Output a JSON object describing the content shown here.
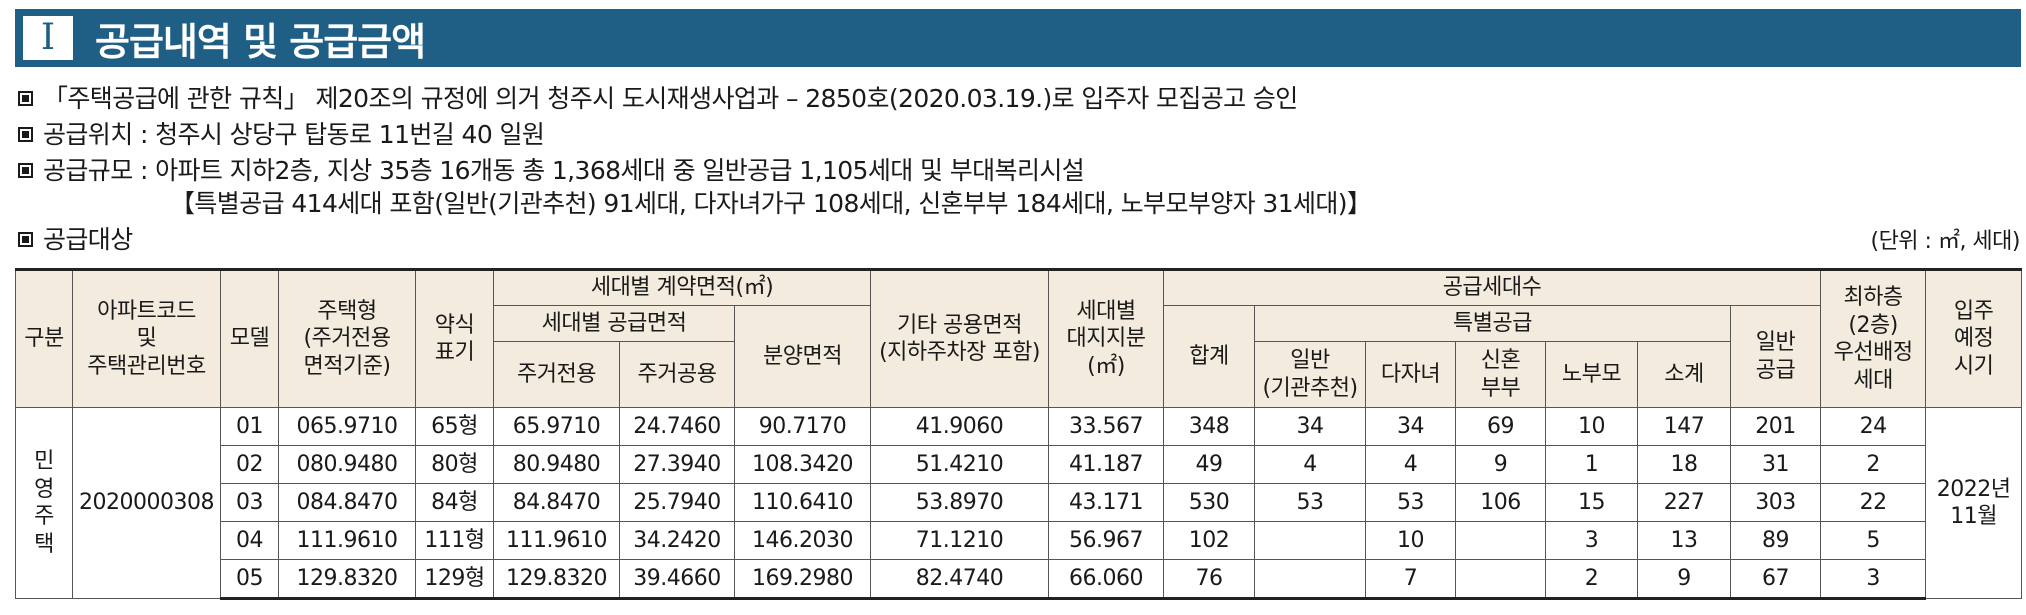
{
  "header": {
    "number": "I",
    "title": "공급내역 및 공급금액"
  },
  "info": {
    "line1": "「주택공급에 관한 규칙」 제20조의 규정에 의거 청주시 도시재생사업과 – 2850호(2020.03.19.)로 입주자 모집공고 승인",
    "line2": "공급위치 : 청주시 상당구 탑동로 11번길 40 일원",
    "line3": "공급규모 : 아파트 지하2층, 지상 35층 16개동 총 1,368세대 중 일반공급 1,105세대 및 부대복리시설",
    "line4": "【특별공급 414세대 포함(일반(기관추천) 91세대, 다자녀가구 108세대, 신혼부부 184세대, 노부모부양자 31세대)】",
    "line5": "공급대상",
    "unit": "(단위 : ㎡, 세대)"
  },
  "table": {
    "headers": {
      "category": "구분",
      "code": "아파트코드\n및\n주택관리번호",
      "model": "모델",
      "type": "주택형\n(주거전용\n면적기준)",
      "abbrev": "약식\n표기",
      "contract_area": "세대별 계약면적(㎡)",
      "supply_area": "세대별 공급면적",
      "exclusive": "주거전용",
      "common": "주거공용",
      "sale_area": "분양면적",
      "other_common": "기타 공용면적\n(지하주차장 포함)",
      "land_share": "세대별\n대지지분\n(㎡)",
      "supply_units": "공급세대수",
      "total": "합계",
      "special": "특별공급",
      "institution": "일반\n(기관추천)",
      "multi_child": "다자녀",
      "newlywed": "신혼\n부부",
      "elderly": "노부모",
      "subtotal": "소계",
      "general": "일반\n공급",
      "lowest_floor": "최하층\n(2층)\n우선배정\n세대",
      "move_in": "입주\n예정\n시기"
    },
    "category_value": "민영주택",
    "code_value": "2020000308",
    "move_in_value": "2022년\n11월",
    "rows": [
      {
        "model": "01",
        "type": "065.9710",
        "abbrev": "65형",
        "exclusive": "65.9710",
        "common": "24.7460",
        "sale": "90.7170",
        "other": "41.9060",
        "land": "33.567",
        "total": "348",
        "institution": "34",
        "multi": "34",
        "newlywed": "69",
        "elderly": "10",
        "subtotal": "147",
        "general": "201",
        "lowest": "24"
      },
      {
        "model": "02",
        "type": "080.9480",
        "abbrev": "80형",
        "exclusive": "80.9480",
        "common": "27.3940",
        "sale": "108.3420",
        "other": "51.4210",
        "land": "41.187",
        "total": "49",
        "institution": "4",
        "multi": "4",
        "newlywed": "9",
        "elderly": "1",
        "subtotal": "18",
        "general": "31",
        "lowest": "2"
      },
      {
        "model": "03",
        "type": "084.8470",
        "abbrev": "84형",
        "exclusive": "84.8470",
        "common": "25.7940",
        "sale": "110.6410",
        "other": "53.8970",
        "land": "43.171",
        "total": "530",
        "institution": "53",
        "multi": "53",
        "newlywed": "106",
        "elderly": "15",
        "subtotal": "227",
        "general": "303",
        "lowest": "22"
      },
      {
        "model": "04",
        "type": "111.9610",
        "abbrev": "111형",
        "exclusive": "111.9610",
        "common": "34.2420",
        "sale": "146.2030",
        "other": "71.1210",
        "land": "56.967",
        "total": "102",
        "institution": "",
        "multi": "10",
        "newlywed": "",
        "elderly": "3",
        "subtotal": "13",
        "general": "89",
        "lowest": "5"
      },
      {
        "model": "05",
        "type": "129.8320",
        "abbrev": "129형",
        "exclusive": "129.8320",
        "common": "39.4660",
        "sale": "169.2980",
        "other": "82.4740",
        "land": "66.060",
        "total": "76",
        "institution": "",
        "multi": "7",
        "newlywed": "",
        "elderly": "2",
        "subtotal": "9",
        "general": "67",
        "lowest": "3"
      }
    ]
  }
}
